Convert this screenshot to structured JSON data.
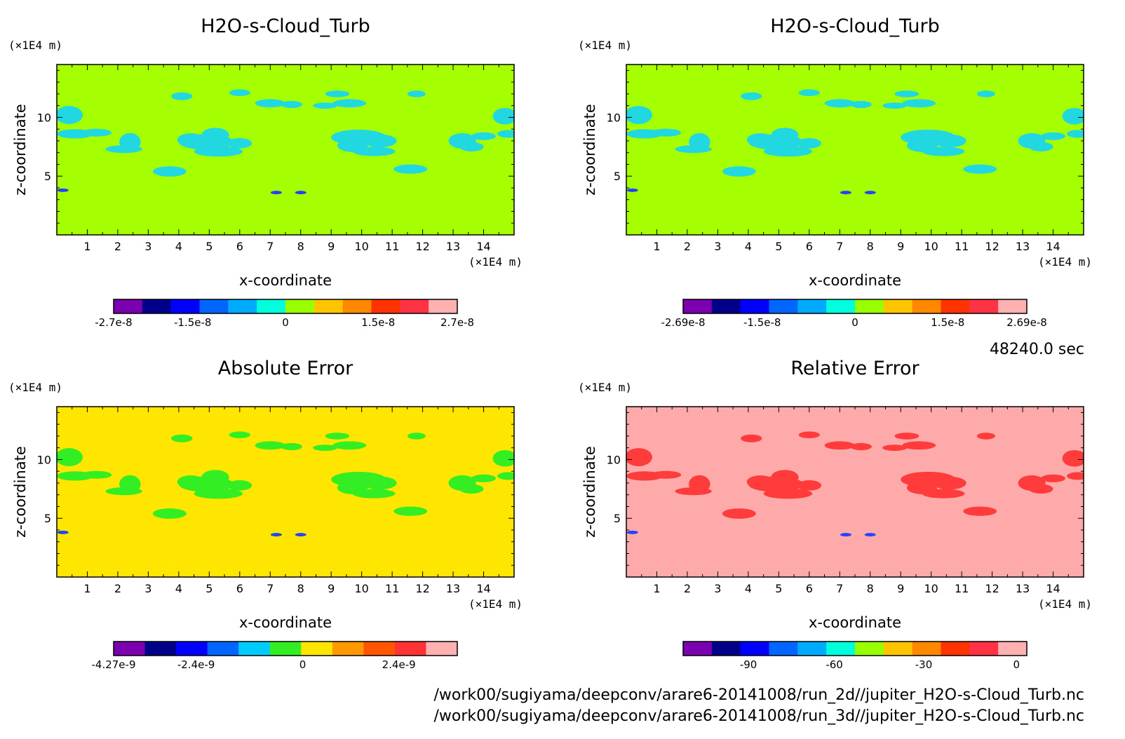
{
  "chart_data": [
    {
      "type": "heatmap",
      "title": "H2O-s-Cloud_Turb",
      "xlabel": "x-coordinate",
      "ylabel": "z-coordinate",
      "x_unit": "(×1E4 m)",
      "y_unit": "(×1E4 m)",
      "x_ticks": [
        "1",
        "2",
        "3",
        "4",
        "5",
        "6",
        "7",
        "8",
        "9",
        "10",
        "11",
        "12",
        "13",
        "14"
      ],
      "y_ticks": [
        "5",
        "10"
      ],
      "xlim": [
        0,
        15
      ],
      "ylim": [
        0,
        14.5
      ],
      "background_color": "#a6ff00",
      "feature_color": "#22d8e0",
      "colorbar": {
        "colors": [
          "#7a00b0",
          "#00008b",
          "#0000ff",
          "#0066ff",
          "#00aaff",
          "#00ffdd",
          "#99ff00",
          "#ffc400",
          "#ff8800",
          "#ff3300",
          "#ff3344",
          "#ffb0b0"
        ],
        "labels": [
          "-2.7e-8",
          "-1.5e-8",
          "0",
          "1.5e-8",
          "2.7e-8"
        ],
        "label_positions": [
          0,
          0.23,
          0.5,
          0.77,
          1
        ]
      }
    },
    {
      "type": "heatmap",
      "title": "H2O-s-Cloud_Turb",
      "xlabel": "x-coordinate",
      "ylabel": "z-coordinate",
      "x_unit": "(×1E4 m)",
      "y_unit": "(×1E4 m)",
      "x_ticks": [
        "1",
        "2",
        "3",
        "4",
        "5",
        "6",
        "7",
        "8",
        "9",
        "10",
        "11",
        "12",
        "13",
        "14"
      ],
      "y_ticks": [
        "5",
        "10"
      ],
      "xlim": [
        0,
        15
      ],
      "ylim": [
        0,
        14.5
      ],
      "background_color": "#a6ff00",
      "feature_color": "#22d8e0",
      "colorbar": {
        "colors": [
          "#7a00b0",
          "#00008b",
          "#0000ff",
          "#0066ff",
          "#00aaff",
          "#00ffdd",
          "#99ff00",
          "#ffc400",
          "#ff8800",
          "#ff3300",
          "#ff3344",
          "#ffb0b0"
        ],
        "labels": [
          "-2.69e-8",
          "-1.5e-8",
          "0",
          "1.5e-8",
          "2.69e-8"
        ],
        "label_positions": [
          0,
          0.23,
          0.5,
          0.77,
          1
        ]
      }
    },
    {
      "type": "heatmap",
      "title": "Absolute Error",
      "xlabel": "x-coordinate",
      "ylabel": "z-coordinate",
      "x_unit": "(×1E4 m)",
      "y_unit": "(×1E4 m)",
      "x_ticks": [
        "1",
        "2",
        "3",
        "4",
        "5",
        "6",
        "7",
        "8",
        "9",
        "10",
        "11",
        "12",
        "13",
        "14"
      ],
      "y_ticks": [
        "5",
        "10"
      ],
      "xlim": [
        0,
        15
      ],
      "ylim": [
        0,
        14.5
      ],
      "background_color": "#ffe600",
      "feature_color": "#33ee22",
      "colorbar": {
        "colors": [
          "#7a00b0",
          "#00008b",
          "#0000ff",
          "#0066ff",
          "#00ccff",
          "#33ee22",
          "#ffe600",
          "#ff9900",
          "#ff5500",
          "#ff3333",
          "#ffb0b0"
        ],
        "labels": [
          "-4.27e-9",
          "-2.4e-9",
          "0",
          "2.4e-9"
        ],
        "label_positions": [
          0,
          0.24,
          0.55,
          0.83
        ]
      }
    },
    {
      "type": "heatmap",
      "title": "Relative Error",
      "xlabel": "x-coordinate",
      "ylabel": "z-coordinate",
      "x_unit": "(×1E4 m)",
      "y_unit": "(×1E4 m)",
      "x_ticks": [
        "1",
        "2",
        "3",
        "4",
        "5",
        "6",
        "7",
        "8",
        "9",
        "10",
        "11",
        "12",
        "13",
        "14"
      ],
      "y_ticks": [
        "5",
        "10"
      ],
      "xlim": [
        0,
        15
      ],
      "ylim": [
        0,
        14.5
      ],
      "background_color": "#ffaaaa",
      "feature_color": "#ff3b3b",
      "colorbar": {
        "colors": [
          "#7a00b0",
          "#00008b",
          "#0000ff",
          "#0066ff",
          "#00aaff",
          "#00ffdd",
          "#99ff00",
          "#ffc400",
          "#ff8800",
          "#ff3300",
          "#ff3344",
          "#ffb0b0"
        ],
        "labels": [
          "-90",
          "-60",
          "-30",
          "0"
        ],
        "label_positions": [
          0.19,
          0.44,
          0.7,
          0.97
        ]
      }
    }
  ],
  "time_label": "48240.0 sec",
  "footer_lines": [
    "/work00/sugiyama/deepconv/arare6-20141008/run_2d//jupiter_H2O-s-Cloud_Turb.nc",
    "/work00/sugiyama/deepconv/arare6-20141008/run_3d//jupiter_H2O-s-Cloud_Turb.nc"
  ]
}
